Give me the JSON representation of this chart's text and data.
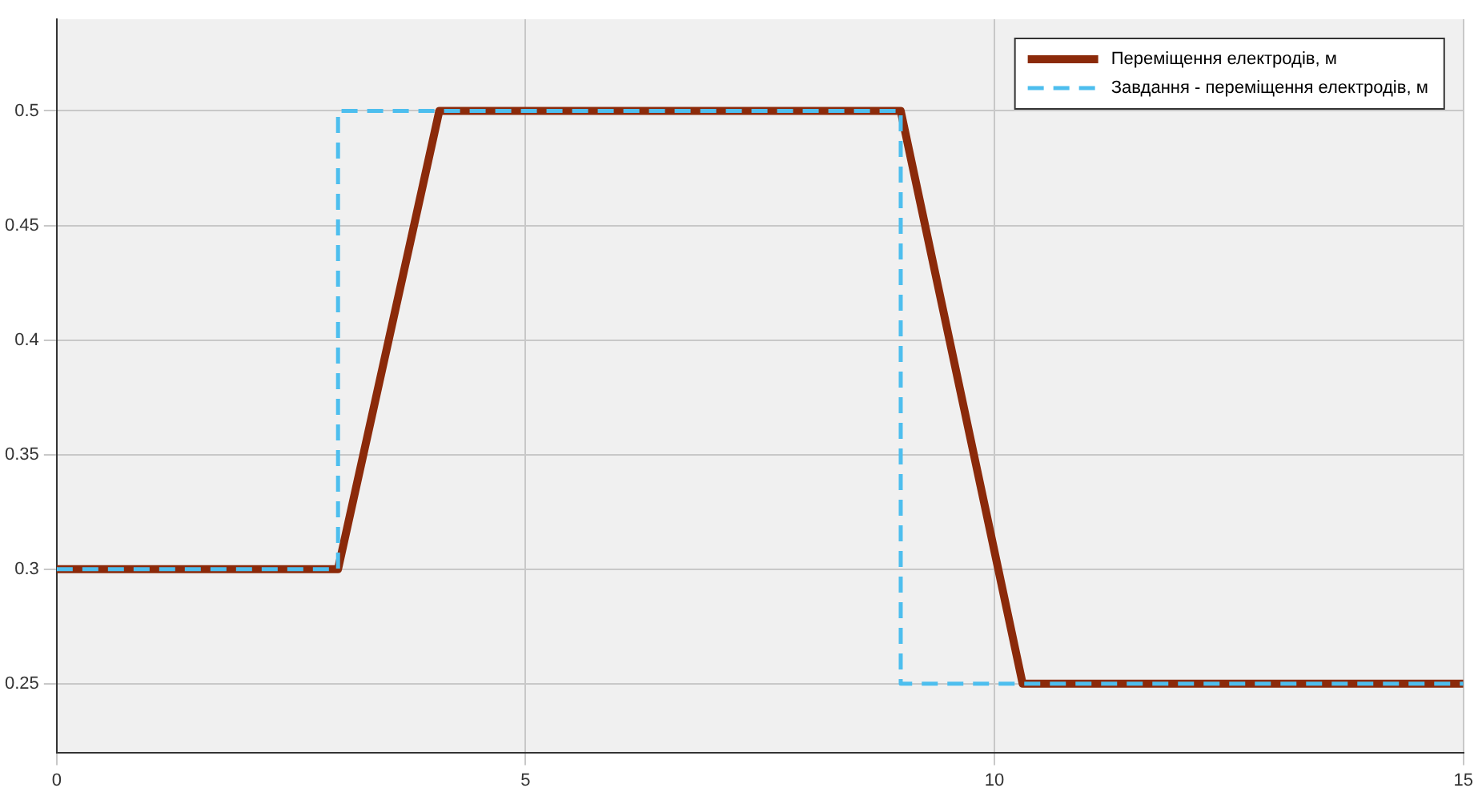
{
  "chart_data": {
    "type": "line",
    "xlim": [
      0,
      15
    ],
    "xticks": [
      0,
      5,
      10,
      15
    ],
    "ylim": [
      0.22,
      0.54
    ],
    "yticks": [
      0.25,
      0.3,
      0.35,
      0.4,
      0.45,
      0.5
    ],
    "grid": true,
    "legend": "top right",
    "marker": "none",
    "series": [
      {
        "name": "Переміщення електродів, м",
        "color": "#8b2a0a",
        "line_style": "solid",
        "x": [
          0,
          3,
          4.08,
          9,
          10.3,
          15
        ],
        "values": [
          0.3,
          0.3,
          0.5,
          0.5,
          0.25,
          0.25
        ]
      },
      {
        "name": "Завдання - переміщення електродів, м",
        "color": "#4dbeee",
        "line_style": "dashed",
        "x": [
          0,
          3,
          3,
          9,
          9,
          15
        ],
        "values": [
          0.3,
          0.3,
          0.5,
          0.5,
          0.25,
          0.25
        ]
      }
    ]
  }
}
